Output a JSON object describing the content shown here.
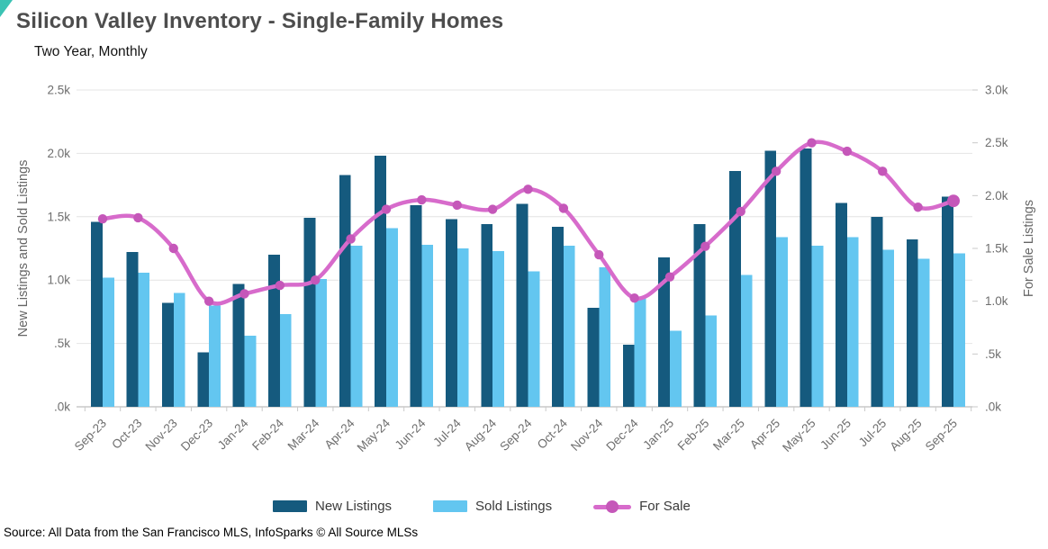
{
  "accent_color": "#3bc3b4",
  "title": "Silicon Valley Inventory - Single-Family Homes",
  "subtitle": "Two Year, Monthly",
  "source": "Source: All Data from the San Francisco MLS, InfoSparks © All Source MLSs",
  "colors": {
    "new_listings": "#155a7e",
    "sold_listings": "#63c6f0",
    "for_sale_line": "#d76bcb",
    "for_sale_marker": "#c557b9",
    "gridline": "#e4e4e4",
    "axis_line": "#c9c9c9",
    "tick_text": "#6e6e6e"
  },
  "legend": [
    {
      "label": "New Listings",
      "type": "bar"
    },
    {
      "label": "Sold Listings",
      "type": "bar"
    },
    {
      "label": "For Sale",
      "type": "line"
    }
  ],
  "chart_data": {
    "type": "bar",
    "subtype": "grouped bars with overlay line on secondary axis",
    "categories": [
      "Sep-23",
      "Oct-23",
      "Nov-23",
      "Dec-23",
      "Jan-24",
      "Feb-24",
      "Mar-24",
      "Apr-24",
      "May-24",
      "Jun-24",
      "Jul-24",
      "Aug-24",
      "Sep-24",
      "Oct-24",
      "Nov-24",
      "Dec-24",
      "Jan-25",
      "Feb-25",
      "Mar-25",
      "Apr-25",
      "May-25",
      "Jun-25",
      "Jul-25",
      "Aug-25",
      "Sep-25"
    ],
    "series": [
      {
        "name": "New Listings",
        "type": "bar",
        "axis": "left",
        "values": [
          1460,
          1220,
          820,
          430,
          970,
          1200,
          1490,
          1830,
          1980,
          1590,
          1480,
          1440,
          1600,
          1420,
          780,
          490,
          1180,
          1440,
          1860,
          2020,
          2040,
          1610,
          1500,
          1320,
          1660
        ]
      },
      {
        "name": "Sold Listings",
        "type": "bar",
        "axis": "left",
        "values": [
          1020,
          1060,
          900,
          800,
          560,
          730,
          1010,
          1270,
          1410,
          1280,
          1250,
          1230,
          1070,
          1270,
          1100,
          860,
          600,
          720,
          1040,
          1340,
          1270,
          1340,
          1240,
          1170,
          1210
        ]
      },
      {
        "name": "For Sale",
        "type": "line",
        "axis": "right",
        "values": [
          1780,
          1790,
          1500,
          1000,
          1070,
          1150,
          1200,
          1590,
          1870,
          1960,
          1910,
          1870,
          2060,
          1880,
          1440,
          1030,
          1230,
          1520,
          1850,
          2230,
          2500,
          2420,
          2230,
          1890,
          1950
        ]
      }
    ],
    "left_axis": {
      "label": "New Listings and Sold Listings",
      "min": 0,
      "max": 2500,
      "tick_step": 500,
      "tick_labels": [
        "2.5k",
        "2.0k",
        "1.5k",
        "1.0k",
        ".5k",
        ".0k"
      ]
    },
    "right_axis": {
      "label": "For Sale Listings",
      "min": 0,
      "max": 3000,
      "tick_step": 500,
      "tick_labels": [
        "3.0k",
        "2.5k",
        "2.0k",
        "1.5k",
        "1.0k",
        ".5k",
        ".0k"
      ]
    },
    "grid": "horizontal gridlines at left-axis ticks",
    "legend_position": "bottom center",
    "title": "Silicon Valley Inventory - Single-Family Homes",
    "subtitle": "Two Year, Monthly"
  }
}
